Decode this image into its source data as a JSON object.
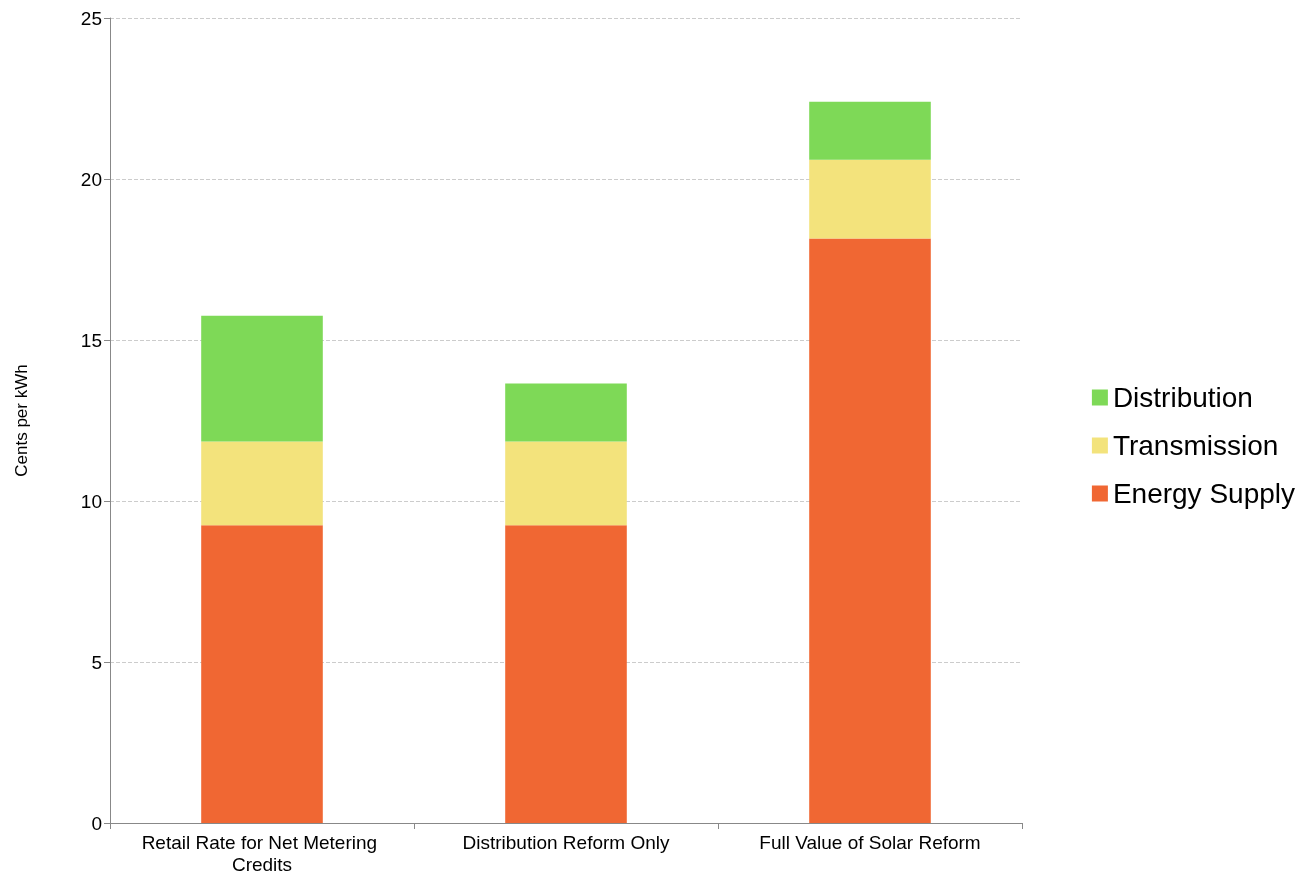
{
  "chart_data": {
    "type": "bar",
    "ylabel": "Cents per kWh",
    "categories": [
      "Retail Rate for Net Metering Credits",
      "Distribution Reform Only",
      "Full Value of Solar Reform"
    ],
    "stacked": true,
    "series": [
      {
        "name": "Energy Supply",
        "color": "#f06733",
        "values": [
          9.25,
          9.25,
          18.15
        ]
      },
      {
        "name": "Transmission",
        "color": "#f3e37c",
        "values": [
          2.6,
          2.6,
          2.45
        ]
      },
      {
        "name": "Distribution",
        "color": "#7ed957",
        "values": [
          3.9,
          1.8,
          1.8
        ]
      }
    ],
    "ylim": [
      0,
      25
    ],
    "yticks": [
      0,
      5,
      10,
      15,
      20,
      25
    ],
    "grid": "y",
    "legend": "right"
  }
}
